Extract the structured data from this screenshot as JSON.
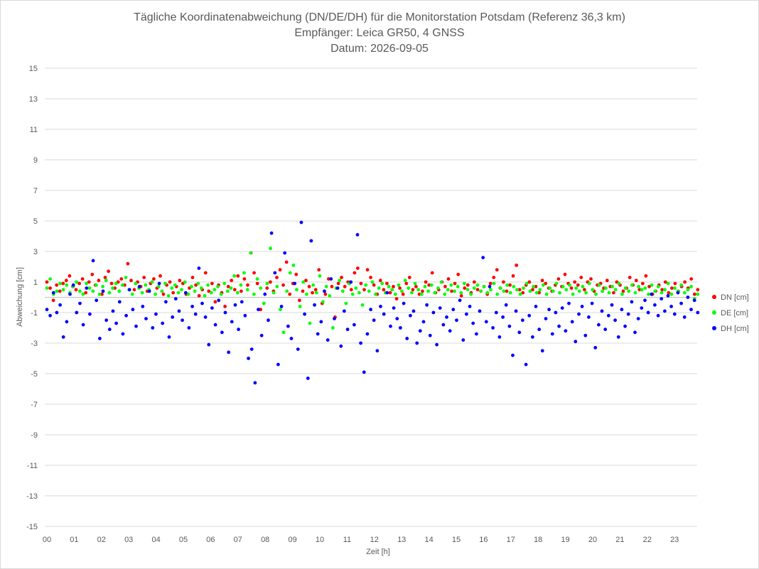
{
  "chart_data": {
    "type": "scatter",
    "title_lines": [
      "Tägliche Koordinatenabweichung (DN/DE/DH) für die Monitorstation Potsdam (Referenz 36,3 km)",
      "Empfänger: Leica GR50, 4 GNSS",
      "Datum: 2026-09-05"
    ],
    "xlabel": "Zeit [h]",
    "ylabel": "Abweichung [cm]",
    "xlim": [
      0,
      24
    ],
    "ylim": [
      -15,
      15
    ],
    "x_tick_labels": [
      "00",
      "01",
      "02",
      "03",
      "04",
      "05",
      "06",
      "07",
      "08",
      "09",
      "10",
      "11",
      "12",
      "13",
      "14",
      "15",
      "16",
      "17",
      "18",
      "19",
      "20",
      "21",
      "22",
      "23"
    ],
    "y_ticks": [
      15,
      13,
      11,
      9,
      7,
      5,
      3,
      1,
      -1,
      -3,
      -5,
      -7,
      -9,
      -11,
      -13,
      -15
    ],
    "grid": "horizontal",
    "legend_position": "right",
    "series": [
      {
        "name": "DN [cm]",
        "color": "#ff0000",
        "values": [
          1.0,
          0.6,
          -0.2,
          0.8,
          0.4,
          0.9,
          1.1,
          1.4,
          0.7,
          0.5,
          0.9,
          1.2,
          0.3,
          1.0,
          1.5,
          0.8,
          1.1,
          0.2,
          1.3,
          1.7,
          0.9,
          0.6,
          1.0,
          1.2,
          0.8,
          2.2,
          1.1,
          0.5,
          1.0,
          0.7,
          1.3,
          0.4,
          0.9,
          1.2,
          0.6,
          1.4,
          0.2,
          0.8,
          1.0,
          0.3,
          0.7,
          1.1,
          0.9,
          0.2,
          0.6,
          1.3,
          0.8,
          0.1,
          0.5,
          1.6,
          0.4,
          0.9,
          -0.3,
          0.8,
          0.3,
          -0.6,
          0.7,
          1.1,
          0.5,
          1.4,
          0.4,
          1.2,
          0.8,
          2.9,
          1.6,
          0.9,
          -0.8,
          -0.4,
          0.6,
          1.0,
          0.4,
          1.3,
          1.8,
          0.8,
          2.3,
          0.2,
          0.9,
          1.5,
          -0.2,
          0.4,
          1.1,
          0.7,
          0.3,
          0.5,
          1.8,
          -0.4,
          0.2,
          1.2,
          0.7,
          -1.3,
          0.9,
          1.3,
          0.7,
          1.0,
          0.5,
          1.6,
          1.9,
          0.9,
          0.5,
          1.8,
          1.3,
          0.8,
          0.2,
          1.1,
          0.5,
          0.9,
          0.3,
          0.7,
          -0.1,
          0.6,
          0.2,
          0.9,
          1.3,
          0.5,
          0.7,
          0.2,
          0.4,
          1.0,
          0.8,
          1.6,
          0.3,
          0.5,
          1.0,
          0.7,
          1.2,
          0.4,
          0.9,
          1.5,
          0.1,
          0.6,
          0.8,
          0.3,
          1.0,
          0.5,
          0.4,
          0.7,
          0.2,
          0.9,
          1.3,
          1.8,
          0.6,
          1.0,
          0.4,
          0.8,
          1.4,
          2.1,
          0.5,
          0.3,
          0.8,
          1.0,
          0.5,
          0.7,
          0.3,
          1.1,
          0.9,
          0.6,
          0.4,
          0.8,
          1.2,
          0.7,
          1.5,
          0.9,
          0.6,
          1.0,
          0.8,
          1.3,
          0.5,
          1.0,
          1.2,
          0.4,
          0.8,
          0.9,
          0.6,
          1.1,
          0.7,
          0.3,
          1.0,
          0.8,
          0.4,
          0.6,
          1.3,
          0.8,
          1.1,
          0.5,
          0.9,
          1.4,
          0.7,
          0.2,
          0.4,
          0.8,
          0.5,
          1.0,
          0.3,
          0.6,
          0.9,
          0.4,
          0.7,
          1.0,
          0.6,
          1.2,
          0.2,
          0.5
        ]
      },
      {
        "name": "DE [cm]",
        "color": "#00ff00",
        "values": [
          0.6,
          1.2,
          0.2,
          0.4,
          0.9,
          0.5,
          0.8,
          0.3,
          0.7,
          1.0,
          0.4,
          0.2,
          0.9,
          0.6,
          0.4,
          0.8,
          0.2,
          0.7,
          1.1,
          0.3,
          0.6,
          0.9,
          0.4,
          0.8,
          1.3,
          0.5,
          0.2,
          0.9,
          0.6,
          0.3,
          0.8,
          0.5,
          1.0,
          0.2,
          0.7,
          0.4,
          0.9,
          0.1,
          0.6,
          0.8,
          0.3,
          0.5,
          1.0,
          0.2,
          0.7,
          0.4,
          0.9,
          0.6,
          0.1,
          0.8,
          0.3,
          0.5,
          0.7,
          0.2,
          0.9,
          0.4,
          0.6,
          1.4,
          0.3,
          0.8,
          1.6,
          0.5,
          2.9,
          0.2,
          1.2,
          0.6,
          -0.4,
          0.9,
          3.2,
          0.3,
          0.7,
          -0.8,
          -2.3,
          0.4,
          1.6,
          2.1,
          0.5,
          -0.6,
          1.0,
          0.2,
          -1.7,
          0.8,
          0.3,
          1.4,
          -0.3,
          0.7,
          0.1,
          -2.0,
          0.6,
          1.1,
          0.4,
          -0.4,
          0.9,
          0.2,
          0.6,
          0.3,
          -0.5,
          0.8,
          0.4,
          1.0,
          0.2,
          0.6,
          0.9,
          0.3,
          0.7,
          0.5,
          0.2,
          0.8,
          0.4,
          1.1,
          0.6,
          0.3,
          0.9,
          0.5,
          0.2,
          0.7,
          0.4,
          0.8,
          0.3,
          0.6,
          1.0,
          0.2,
          0.5,
          0.8,
          0.4,
          0.7,
          0.3,
          0.9,
          0.5,
          0.2,
          0.6,
          0.8,
          0.4,
          0.7,
          0.3,
          0.5,
          0.9,
          0.2,
          0.6,
          0.4,
          0.8,
          0.3,
          0.7,
          0.5,
          0.2,
          0.6,
          0.9,
          0.4,
          0.7,
          0.3,
          0.5,
          0.8,
          0.2,
          0.6,
          0.4,
          0.9,
          0.3,
          0.7,
          0.5,
          0.8,
          0.2,
          0.6,
          0.4,
          0.7,
          0.3,
          0.9,
          0.5,
          0.2,
          0.8,
          0.4,
          0.6,
          0.3,
          0.7,
          0.5,
          0.9,
          0.2,
          0.6,
          0.4,
          0.8,
          0.3,
          0.7,
          0.5,
          0.6,
          0.2,
          0.8,
          0.4,
          0.7,
          0.3,
          0.5,
          0.9,
          0.2,
          0.6,
          0.4,
          0.8,
          0.3,
          0.5,
          0.7,
          -0.1,
          0.2
        ]
      },
      {
        "name": "DH [cm]",
        "color": "#0000ff",
        "values": [
          -0.8,
          -1.2,
          0.3,
          -1.0,
          -0.5,
          -2.6,
          -1.6,
          0.2,
          0.8,
          -1.0,
          -0.4,
          -1.8,
          0.6,
          -1.1,
          2.4,
          -0.2,
          -2.7,
          0.4,
          -1.5,
          -2.1,
          -0.9,
          -1.7,
          -0.3,
          -2.4,
          -1.2,
          0.5,
          -0.8,
          -1.9,
          0.7,
          -0.6,
          -1.4,
          0.4,
          -2.0,
          -1.1,
          0.9,
          -1.7,
          -0.3,
          -2.6,
          -1.3,
          -0.1,
          -0.9,
          -1.5,
          0.3,
          -2.0,
          -0.6,
          -1.1,
          1.9,
          -0.4,
          -1.3,
          -3.1,
          -0.7,
          -1.8,
          -0.2,
          -2.3,
          -1.0,
          -3.6,
          -1.6,
          -0.5,
          -2.1,
          -0.3,
          -1.2,
          -4.0,
          -3.4,
          -5.6,
          -0.8,
          -2.5,
          0.2,
          -1.5,
          4.2,
          1.6,
          -4.4,
          -0.6,
          2.9,
          -1.9,
          -2.7,
          0.9,
          -3.4,
          4.9,
          -1.1,
          -5.3,
          3.7,
          -0.5,
          -2.4,
          -1.6,
          0.4,
          -2.8,
          1.2,
          -1.4,
          0.6,
          -3.2,
          -0.9,
          -2.1,
          1.0,
          -1.8,
          4.1,
          -3.0,
          -4.9,
          -2.4,
          -0.8,
          -1.5,
          -3.5,
          -0.6,
          -1.1,
          0.3,
          -1.9,
          -0.7,
          -1.4,
          -2.0,
          -0.4,
          -2.7,
          -1.2,
          -0.9,
          -3.0,
          -2.2,
          -1.6,
          -0.5,
          -2.5,
          -1.0,
          -3.1,
          -0.7,
          -1.8,
          -1.3,
          -2.2,
          -0.8,
          -1.5,
          -0.2,
          -2.8,
          -1.1,
          -0.6,
          -1.7,
          -2.4,
          -0.9,
          2.6,
          -1.6,
          0.7,
          -2.0,
          -1.0,
          -2.6,
          -1.3,
          -0.5,
          -1.9,
          -3.8,
          -0.9,
          -2.3,
          -1.5,
          -4.4,
          -1.2,
          -2.6,
          -0.6,
          -2.1,
          -3.5,
          -1.4,
          -0.8,
          -2.4,
          -1.0,
          -1.9,
          -0.7,
          -2.2,
          -0.4,
          -1.6,
          -2.9,
          -1.1,
          -0.6,
          -2.5,
          -1.3,
          -0.4,
          -3.3,
          -1.8,
          -0.9,
          -2.1,
          -1.2,
          -0.5,
          -1.5,
          -2.6,
          -0.8,
          -1.9,
          -1.1,
          -0.3,
          -2.3,
          -1.4,
          -0.7,
          -0.2,
          -1.0,
          0.2,
          -0.5,
          -1.2,
          -0.1,
          -0.9,
          0.1,
          -0.6,
          -1.1,
          0.3,
          -0.4,
          -1.3,
          0.0,
          -0.8,
          -0.2,
          -1.0
        ]
      }
    ]
  }
}
